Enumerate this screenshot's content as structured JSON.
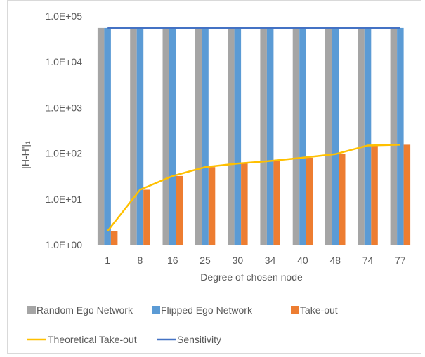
{
  "chart_data": {
    "type": "bar",
    "yscale": "log",
    "ylim": [
      1,
      100000
    ],
    "y_ticks": [
      "1.0E+00",
      "1.0E+01",
      "1.0E+02",
      "1.0E+03",
      "1.0E+04",
      "1.0E+05"
    ],
    "y_tick_values": [
      1,
      10,
      100,
      1000,
      10000,
      100000
    ],
    "ylabel": "|H-H'|₁",
    "xlabel": "Degree of chosen node",
    "categories": [
      "1",
      "8",
      "16",
      "25",
      "30",
      "34",
      "40",
      "48",
      "74",
      "77"
    ],
    "grid": false,
    "legend_position": "bottom",
    "series": [
      {
        "name": "Random Ego Network",
        "kind": "bar",
        "color": "#a5a5a5",
        "values": [
          55000,
          55000,
          55000,
          55000,
          55000,
          55000,
          55000,
          55000,
          55000,
          55000
        ]
      },
      {
        "name": "Flipped Ego Network",
        "kind": "bar",
        "color": "#5b9bd5",
        "values": [
          55000,
          55000,
          55000,
          55000,
          55000,
          55000,
          55000,
          55000,
          55000,
          55000
        ]
      },
      {
        "name": "Take-out",
        "kind": "bar",
        "color": "#ed7d31",
        "values": [
          2,
          16,
          32,
          50,
          60,
          68,
          80,
          96,
          148,
          154
        ]
      },
      {
        "name": "Theoretical Take-out",
        "kind": "line",
        "color": "#ffc000",
        "values": [
          2,
          16,
          32,
          50,
          60,
          68,
          80,
          96,
          148,
          154
        ]
      },
      {
        "name": "Sensitivity",
        "kind": "line",
        "color": "#4472c4",
        "values": [
          55000,
          55000,
          55000,
          55000,
          55000,
          55000,
          55000,
          55000,
          55000,
          55000
        ]
      }
    ]
  }
}
